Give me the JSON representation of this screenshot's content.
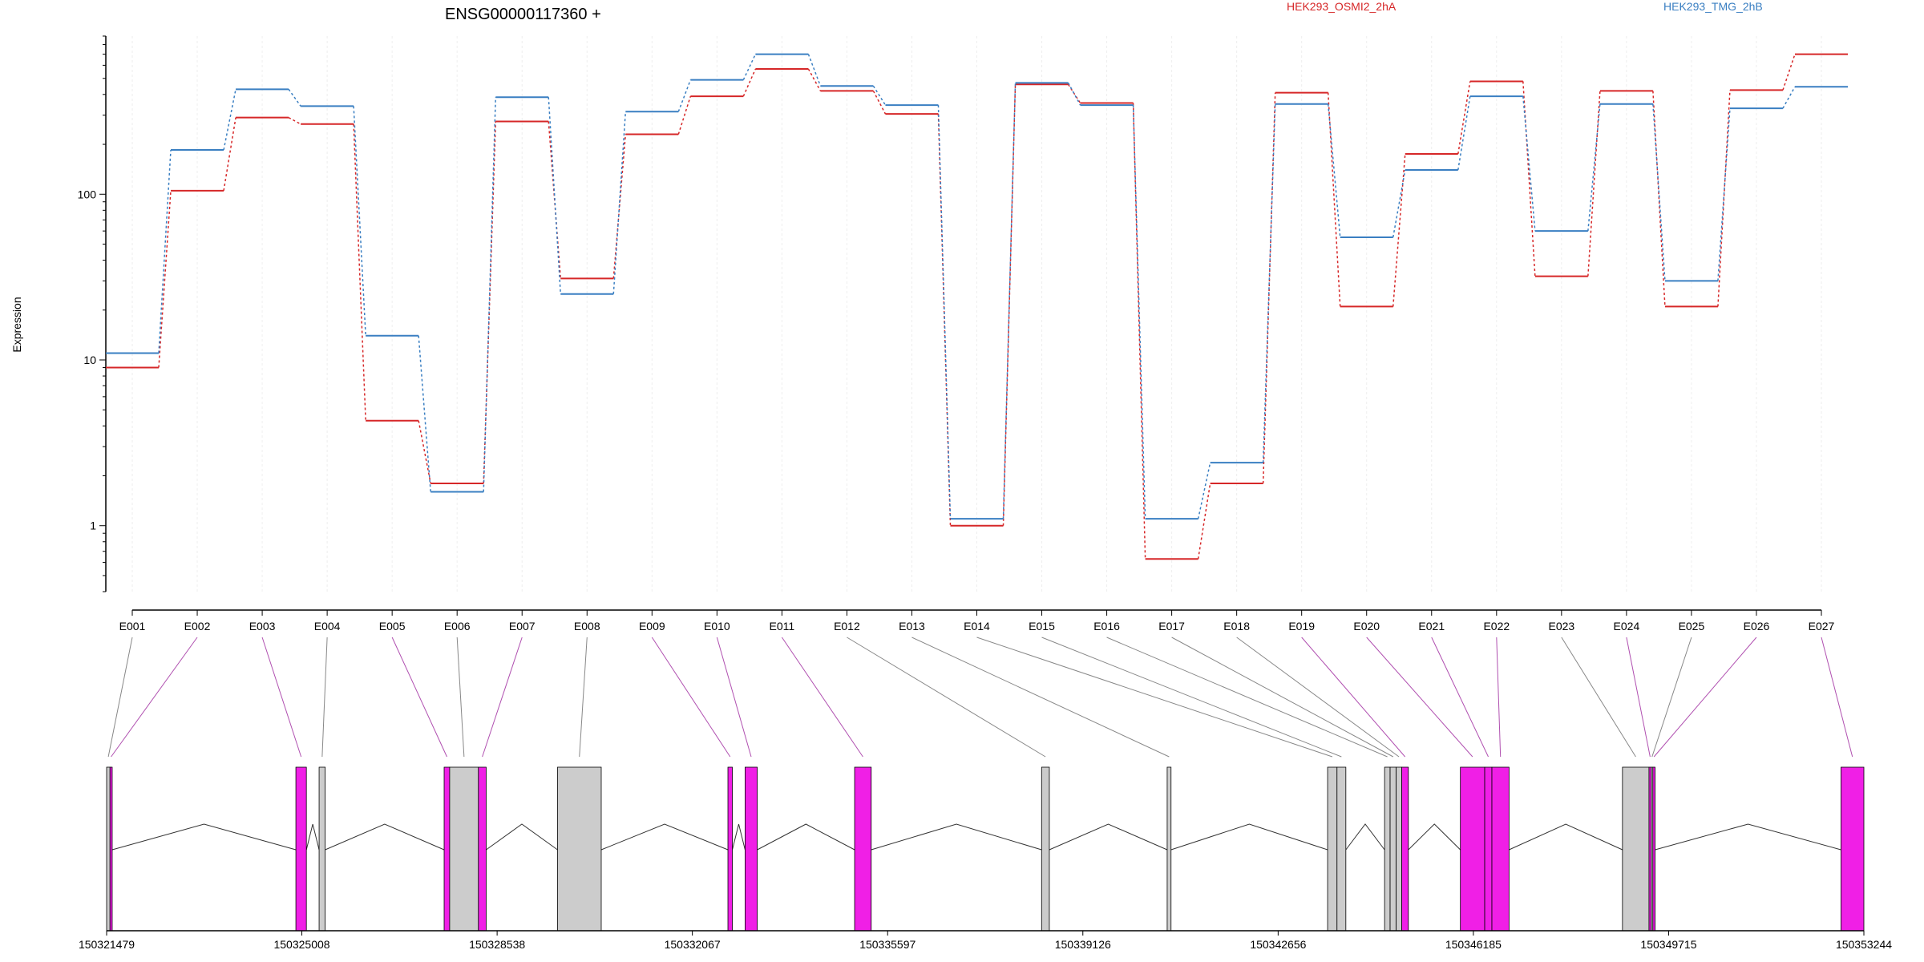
{
  "chart_data": {
    "type": "line",
    "title": "ENSG00000117360 +",
    "xlabel": "",
    "ylabel": "Expression",
    "yscale": "log",
    "ylim": [
      0.4,
      900
    ],
    "yticks": [
      1,
      10,
      100
    ],
    "yticklabels": [
      "1",
      "10",
      "100"
    ],
    "grid": true,
    "legend_position": "top",
    "categories": [
      "E001",
      "E002",
      "E003",
      "E004",
      "E005",
      "E006",
      "E007",
      "E008",
      "E009",
      "E010",
      "E011",
      "E012",
      "E013",
      "E014",
      "E015",
      "E016",
      "E017",
      "E018",
      "E019",
      "E020",
      "E021",
      "E022",
      "E023",
      "E024",
      "E025",
      "E026",
      "E027"
    ],
    "series": [
      {
        "name": "HEK293_OSMI2_2hA",
        "color": "#d62728",
        "values": [
          9,
          105,
          290,
          265,
          4.3,
          1.8,
          275,
          31,
          230,
          390,
          570,
          420,
          305,
          1.0,
          460,
          355,
          0.63,
          1.8,
          410,
          21,
          175,
          480,
          32,
          420,
          21,
          425,
          700
        ]
      },
      {
        "name": "HEK293_TMG_2hB",
        "color": "#3a7fc2",
        "values": [
          11,
          185,
          430,
          340,
          14,
          1.6,
          385,
          25,
          315,
          490,
          700,
          450,
          345,
          1.1,
          470,
          345,
          1.1,
          2.4,
          350,
          55,
          140,
          390,
          60,
          350,
          30,
          330,
          445
        ]
      }
    ],
    "gene_model": {
      "coordinate_ticks": [
        "150321479",
        "150325008",
        "150328538",
        "150332067",
        "150335597",
        "150339126",
        "150342656",
        "150346185",
        "150349715",
        "150353244"
      ],
      "colors": {
        "highlighted": "#f01fe6",
        "default": "#cccccc"
      },
      "exons": [
        {
          "id": "E001",
          "start": 150321479,
          "end": 150321540,
          "highlight": false
        },
        {
          "id": "E002",
          "start": 150321540,
          "end": 150321580,
          "highlight": true
        },
        {
          "id": "E003",
          "start": 150324900,
          "end": 150325090,
          "highlight": true
        },
        {
          "id": "E004",
          "start": 150325320,
          "end": 150325430,
          "highlight": false
        },
        {
          "id": "E005",
          "start": 150327580,
          "end": 150327680,
          "highlight": true
        },
        {
          "id": "E006",
          "start": 150327680,
          "end": 150328200,
          "highlight": false
        },
        {
          "id": "E007",
          "start": 150328200,
          "end": 150328340,
          "highlight": true
        },
        {
          "id": "E008",
          "start": 150329630,
          "end": 150330420,
          "highlight": false
        },
        {
          "id": "E009",
          "start": 150332710,
          "end": 150332790,
          "highlight": true
        },
        {
          "id": "E010",
          "start": 150333020,
          "end": 150333240,
          "highlight": true
        },
        {
          "id": "E011",
          "start": 150335000,
          "end": 150335300,
          "highlight": true
        },
        {
          "id": "E012",
          "start": 150338380,
          "end": 150338520,
          "highlight": false
        },
        {
          "id": "E013",
          "start": 150340650,
          "end": 150340720,
          "highlight": false
        },
        {
          "id": "E014",
          "start": 150343550,
          "end": 150343720,
          "highlight": false
        },
        {
          "id": "E015",
          "start": 150343720,
          "end": 150343880,
          "highlight": false
        },
        {
          "id": "E016",
          "start": 150344580,
          "end": 150344680,
          "highlight": false
        },
        {
          "id": "E017",
          "start": 150344680,
          "end": 150344790,
          "highlight": false
        },
        {
          "id": "E018",
          "start": 150344790,
          "end": 150344890,
          "highlight": false
        },
        {
          "id": "E019",
          "start": 150344890,
          "end": 150345010,
          "highlight": true
        },
        {
          "id": "E020",
          "start": 150345950,
          "end": 150346390,
          "highlight": true
        },
        {
          "id": "E021",
          "start": 150346390,
          "end": 150346520,
          "highlight": true
        },
        {
          "id": "E022",
          "start": 150346520,
          "end": 150346830,
          "highlight": true
        },
        {
          "id": "E023",
          "start": 150348880,
          "end": 150349360,
          "highlight": false
        },
        {
          "id": "E024",
          "start": 150349360,
          "end": 150349400,
          "highlight": true
        },
        {
          "id": "E025",
          "start": 150349400,
          "end": 150349430,
          "highlight": false
        },
        {
          "id": "E026",
          "start": 150349430,
          "end": 150349470,
          "highlight": true
        },
        {
          "id": "E027",
          "start": 150352830,
          "end": 150353244,
          "highlight": true
        }
      ]
    }
  }
}
